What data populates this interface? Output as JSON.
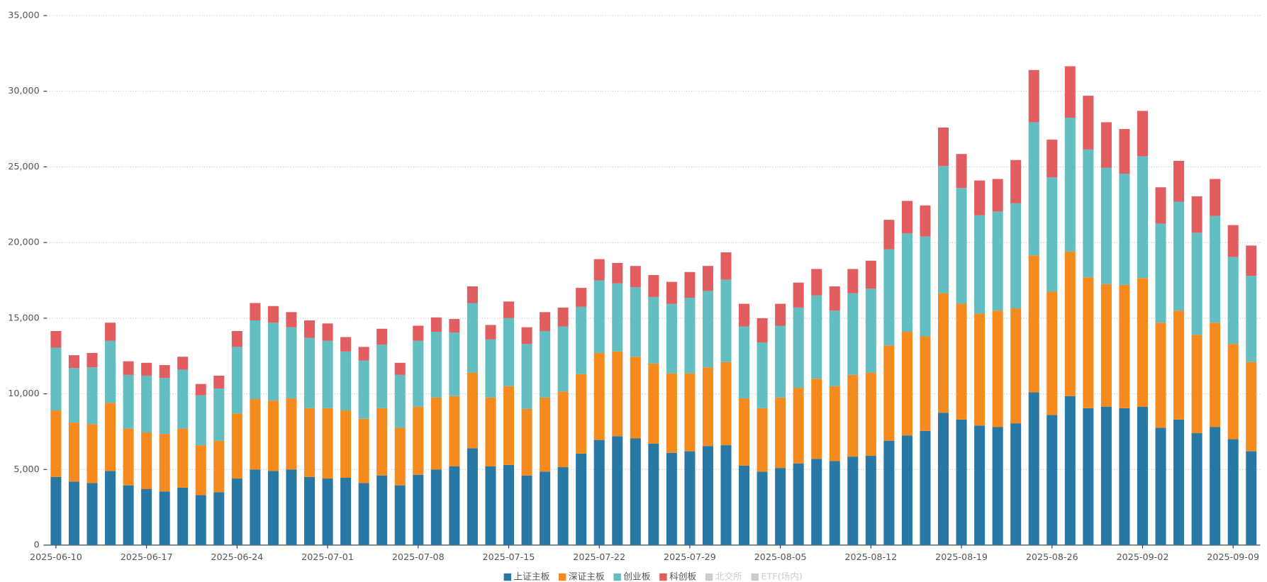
{
  "chart_data": {
    "type": "stacked_bar",
    "categories": [
      "2025-06-10",
      null,
      null,
      null,
      null,
      "2025-06-17",
      null,
      null,
      null,
      null,
      "2025-06-24",
      null,
      null,
      null,
      null,
      "2025-07-01",
      null,
      null,
      null,
      null,
      "2025-07-08",
      null,
      null,
      null,
      null,
      "2025-07-15",
      null,
      null,
      null,
      null,
      "2025-07-22",
      null,
      null,
      null,
      null,
      "2025-07-29",
      null,
      null,
      null,
      null,
      "2025-08-05",
      null,
      null,
      null,
      null,
      "2025-08-12",
      null,
      null,
      null,
      null,
      "2025-08-19",
      null,
      null,
      null,
      null,
      "2025-08-26",
      null,
      null,
      null,
      null,
      "2025-09-02",
      null,
      null,
      null,
      null,
      "2025-09-09",
      null
    ],
    "series": [
      {
        "name": "上证主板",
        "color": "#2878a6",
        "values": [
          4500,
          4200,
          4100,
          4900,
          3950,
          3700,
          3550,
          3800,
          3300,
          3500,
          4400,
          5000,
          4900,
          5000,
          4500,
          4400,
          4450,
          4100,
          4600,
          3950,
          4650,
          5000,
          5200,
          6400,
          5200,
          5300,
          4600,
          4850,
          5150,
          6050,
          6950,
          7200,
          7050,
          6700,
          6100,
          6200,
          6550,
          6600,
          5250,
          4850,
          5100,
          5400,
          5700,
          5550,
          5850,
          5900,
          6900,
          7250,
          7550,
          8750,
          8300,
          7900,
          7800,
          8050,
          10100,
          8600,
          9850,
          9050,
          9150,
          9050,
          9150,
          7750,
          8300,
          7400,
          7800,
          7000,
          6200
        ]
      },
      {
        "name": "深证主板",
        "color": "#f58a1f",
        "values": [
          4400,
          3900,
          3900,
          4500,
          3750,
          3750,
          3800,
          3900,
          3300,
          3400,
          4300,
          4650,
          4650,
          4700,
          4550,
          4650,
          4450,
          4250,
          4450,
          3800,
          4500,
          4750,
          4650,
          5000,
          4550,
          5200,
          4400,
          4900,
          5000,
          5250,
          5750,
          5600,
          5400,
          5300,
          5250,
          5150,
          5200,
          5500,
          4450,
          4200,
          4650,
          5000,
          5300,
          4950,
          5400,
          5500,
          6300,
          6850,
          6250,
          7900,
          7650,
          7400,
          7700,
          7600,
          9050,
          8150,
          9550,
          8650,
          8100,
          8150,
          8500,
          6950,
          7200,
          6500,
          6900,
          6300,
          5900
        ]
      },
      {
        "name": "创业板",
        "color": "#62bec0",
        "values": [
          4150,
          3600,
          3750,
          4100,
          3550,
          3750,
          3700,
          3900,
          3300,
          3450,
          4400,
          5200,
          5150,
          4700,
          4650,
          4450,
          3900,
          3850,
          4200,
          3500,
          4350,
          4350,
          4200,
          4600,
          3850,
          4500,
          4300,
          4400,
          4300,
          4450,
          4800,
          4500,
          4600,
          4400,
          4600,
          5000,
          5050,
          5450,
          4750,
          4350,
          4750,
          5300,
          5500,
          5000,
          5400,
          5550,
          6350,
          6500,
          6600,
          8400,
          7650,
          6500,
          6550,
          6950,
          8800,
          7550,
          8850,
          8450,
          7700,
          7350,
          8050,
          6550,
          7200,
          6750,
          7050,
          5750,
          5700
        ]
      },
      {
        "name": "科创板",
        "color": "#e15d5f",
        "values": [
          1100,
          850,
          950,
          1200,
          900,
          850,
          850,
          850,
          750,
          850,
          1050,
          1150,
          1100,
          1000,
          1150,
          1150,
          950,
          900,
          1050,
          800,
          1000,
          950,
          900,
          1100,
          950,
          1100,
          1100,
          1250,
          1250,
          1250,
          1400,
          1350,
          1400,
          1450,
          1450,
          1700,
          1650,
          1800,
          1500,
          1600,
          1450,
          1650,
          1750,
          1600,
          1600,
          1850,
          1950,
          2150,
          2050,
          2550,
          2250,
          2300,
          2150,
          2850,
          3450,
          2500,
          3400,
          3550,
          3000,
          2950,
          3000,
          2400,
          2700,
          2400,
          2450,
          2100,
          2000
        ]
      }
    ],
    "inactive_series": [
      "北交所",
      "ETF(场内)"
    ],
    "inactive_color": "#cccccc",
    "ylim": [
      0,
      35000
    ],
    "yticks": [
      0,
      {
        "value": 5000,
        "label": "5,000"
      },
      {
        "value": 10000,
        "label": "10,000"
      },
      {
        "value": 15000,
        "label": "15,000"
      },
      {
        "value": 20000,
        "label": "20,000"
      },
      {
        "value": 25000,
        "label": "25,000"
      },
      {
        "value": 30000,
        "label": "30,000"
      },
      {
        "value": 35000,
        "label": "35,000"
      }
    ],
    "grid": true,
    "legend": "bottom"
  }
}
